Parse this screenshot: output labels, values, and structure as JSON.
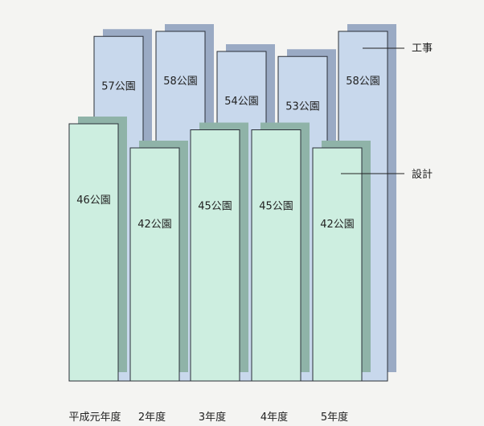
{
  "chart_data": {
    "type": "bar",
    "categories": [
      "平成元年度",
      "2年度",
      "3年度",
      "4年度",
      "5年度"
    ],
    "unit": "公園",
    "series": [
      {
        "name": "工事",
        "values": [
          57,
          58,
          54,
          53,
          58
        ],
        "labels": [
          "57公園",
          "58公園",
          "54公園",
          "53公園",
          "58公園"
        ]
      },
      {
        "name": "設計",
        "values": [
          46,
          42,
          45,
          45,
          42
        ],
        "labels": [
          "46公園",
          "42公園",
          "45公園",
          "45公園",
          "42公園"
        ]
      }
    ],
    "colors": {
      "工事": "#c8d8ec",
      "設計": "#cdeee0",
      "工事_shadow": "#9aaac4",
      "設計_shadow": "#8fb3a8",
      "background": "#f4f4f2"
    }
  }
}
